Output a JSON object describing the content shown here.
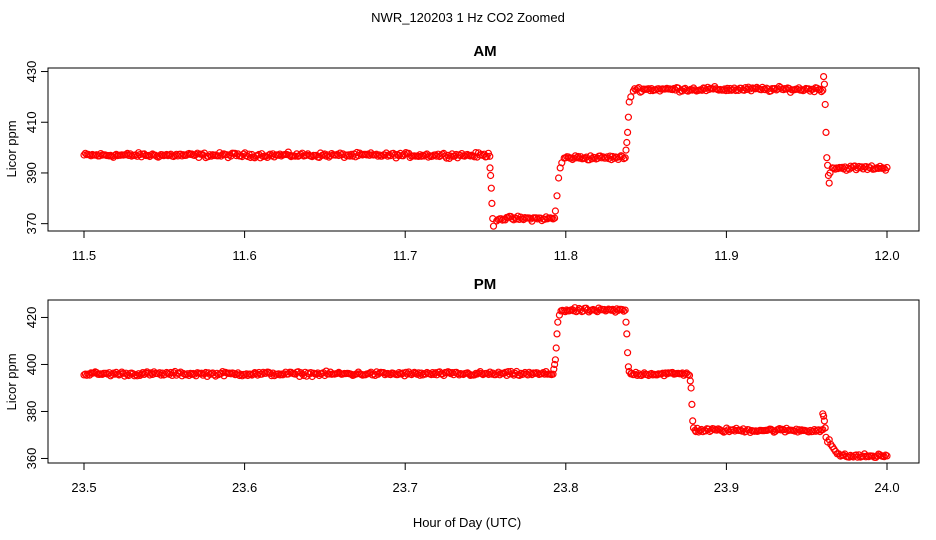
{
  "figure": {
    "title": "NWR_120203  1 Hz CO2 Zoomed",
    "xlabel": "Hour of Day (UTC)",
    "marker_color": "#ff0000"
  },
  "chart_data": [
    {
      "type": "scatter",
      "title": "AM",
      "xlabel": "",
      "ylabel": "Licor ppm",
      "xlim": [
        11.5,
        12.0
      ],
      "ylim": [
        367.5,
        431
      ],
      "xticks": [
        "11.5",
        "11.6",
        "11.7",
        "11.8",
        "11.9",
        "12.0"
      ],
      "yticks": [
        "370",
        "390",
        "410",
        "430"
      ],
      "legend": "none",
      "grid": false,
      "series": [
        {
          "segments": [
            {
              "x": [
                11.5,
                11.7527
              ],
              "y": 397
            },
            {
              "x": [
                11.757,
                11.793
              ],
              "y": 372
            },
            {
              "x": [
                11.799,
                11.837
              ],
              "y": 396
            },
            {
              "x": [
                11.842,
                11.96
              ],
              "y": 423
            },
            {
              "x": [
                11.966,
                12.0
              ],
              "y": 392
            }
          ],
          "transitions": [
            {
              "x": [
                11.7528,
                11.7532,
                11.7536,
                11.754,
                11.7545,
                11.755
              ],
              "y": [
                392,
                389,
                384,
                378,
                372,
                369
              ]
            },
            {
              "x": [
                11.7935,
                11.7945,
                11.7955,
                11.7965,
                11.7975
              ],
              "y": [
                375,
                381,
                388,
                392,
                394
              ]
            },
            {
              "x": [
                11.8375,
                11.838,
                11.8385,
                11.839,
                11.8395,
                11.8405
              ],
              "y": [
                399,
                402,
                406,
                412,
                418,
                420
              ]
            },
            {
              "x": [
                11.9605,
                11.961,
                11.9615,
                11.962,
                11.9625,
                11.963,
                11.9635,
                11.964,
                11.9645
              ],
              "y": [
                428,
                425,
                417,
                406,
                396,
                393,
                389,
                386,
                390
              ]
            }
          ]
        }
      ]
    },
    {
      "type": "scatter",
      "title": "PM",
      "xlabel": "",
      "ylabel": "Licor ppm",
      "xlim": [
        23.5,
        24.0
      ],
      "ylim": [
        358.5,
        427
      ],
      "xticks": [
        "23.5",
        "23.6",
        "23.7",
        "23.8",
        "23.9",
        "24.0"
      ],
      "yticks": [
        "360",
        "380",
        "400",
        "420"
      ],
      "legend": "none",
      "grid": false,
      "series": [
        {
          "segments": [
            {
              "x": [
                23.5,
                23.792
              ],
              "y": 396
            },
            {
              "x": [
                23.797,
                23.837
              ],
              "y": 423
            },
            {
              "x": [
                23.841,
                23.877
              ],
              "y": 396
            },
            {
              "x": [
                23.881,
                23.96
              ],
              "y": 372
            },
            {
              "x": [
                23.972,
                24.0
              ],
              "y": 361
            }
          ],
          "transitions": [
            {
              "x": [
                23.7925,
                23.793,
                23.7935,
                23.794,
                23.7945,
                23.795,
                23.796
              ],
              "y": [
                398,
                400,
                402,
                407,
                413,
                418,
                421
              ]
            },
            {
              "x": [
                23.8375,
                23.838,
                23.8385,
                23.839,
                23.8395,
                23.8405
              ],
              "y": [
                418,
                413,
                405,
                399,
                397,
                396
              ]
            },
            {
              "x": [
                23.8775,
                23.878,
                23.8785,
                23.879,
                23.8795,
                23.8805
              ],
              "y": [
                393,
                390,
                383,
                376,
                373,
                372
              ]
            },
            {
              "x": [
                23.96,
                23.9605,
                23.961,
                23.9615,
                23.962,
                23.963,
                23.964,
                23.965,
                23.966,
                23.967,
                23.968,
                23.969,
                23.97,
                23.971
              ],
              "y": [
                379,
                378,
                376,
                373,
                369,
                367,
                368,
                366,
                365,
                364,
                363,
                362,
                362,
                361
              ]
            }
          ]
        }
      ]
    }
  ]
}
